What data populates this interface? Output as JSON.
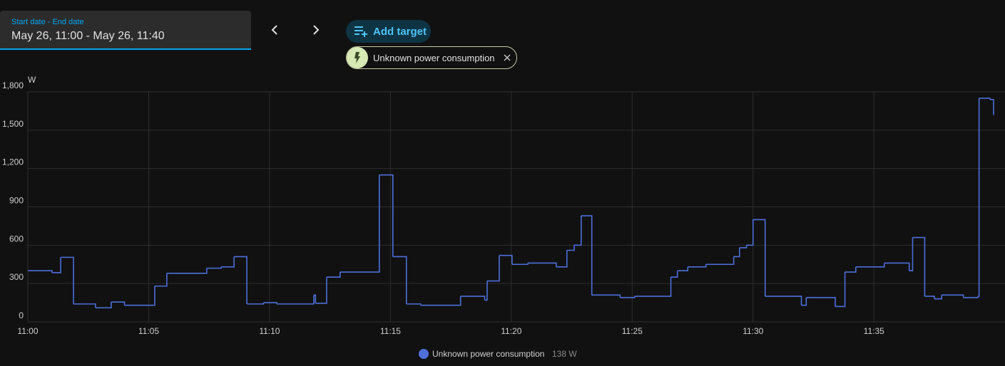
{
  "date_picker": {
    "label": "Start date - End date",
    "value": "May 26, 11:00 - May 26, 11:40"
  },
  "add_target": "Add target",
  "target_chip": "Unknown power consumption",
  "chart_data": {
    "type": "line",
    "step": "after",
    "y_label": "W",
    "x": [
      0,
      1.0,
      1.36,
      1.89,
      2.8,
      3.45,
      4.0,
      5.25,
      5.75,
      7.4,
      8.0,
      8.53,
      9.06,
      9.75,
      10.3,
      11.83,
      11.9,
      12.36,
      12.92,
      14.54,
      15.1,
      15.66,
      16.25,
      17.9,
      18.9,
      19.0,
      19.5,
      20.03,
      20.68,
      21.86,
      22.3,
      22.6,
      22.89,
      23.33,
      24.5,
      25.1,
      26.6,
      26.87,
      27.3,
      28.05,
      29.2,
      29.44,
      29.73,
      30.0,
      30.5,
      32.0,
      32.2,
      33.4,
      33.8,
      34.25,
      35.43,
      36.46,
      36.6,
      37.1,
      37.5,
      37.8,
      38.7,
      39.3,
      39.35,
      39.8,
      39.95
    ],
    "series": [
      {
        "name": "Unknown power consumption",
        "color": "#4d6fd9",
        "values": [
          400,
          385,
          505,
          140,
          110,
          155,
          130,
          280,
          380,
          420,
          430,
          510,
          140,
          150,
          140,
          210,
          145,
          350,
          390,
          1150,
          510,
          140,
          130,
          200,
          170,
          320,
          520,
          450,
          460,
          430,
          560,
          600,
          830,
          210,
          190,
          200,
          350,
          400,
          430,
          450,
          510,
          580,
          600,
          800,
          200,
          130,
          190,
          120,
          390,
          430,
          460,
          400,
          660,
          200,
          180,
          210,
          190,
          200,
          1750,
          1740,
          1620
        ]
      }
    ],
    "legend_state": "138 W",
    "xlim": [
      0,
      39.95
    ],
    "xticks": [
      {
        "value": 0,
        "label": "11:00"
      },
      {
        "value": 5,
        "label": "11:05"
      },
      {
        "value": 10,
        "label": "11:10"
      },
      {
        "value": 15,
        "label": "11:15"
      },
      {
        "value": 20,
        "label": "11:20"
      },
      {
        "value": 25,
        "label": "11:25"
      },
      {
        "value": 30,
        "label": "11:30"
      },
      {
        "value": 35,
        "label": "11:35"
      }
    ],
    "ylim": [
      0,
      1800
    ],
    "yticks": [
      0,
      300,
      600,
      900,
      {
        "value": 1200,
        "label": "1,200"
      },
      {
        "value": 1500,
        "label": "1,500"
      },
      {
        "value": 1800,
        "label": "1,800"
      }
    ],
    "grid": true
  }
}
